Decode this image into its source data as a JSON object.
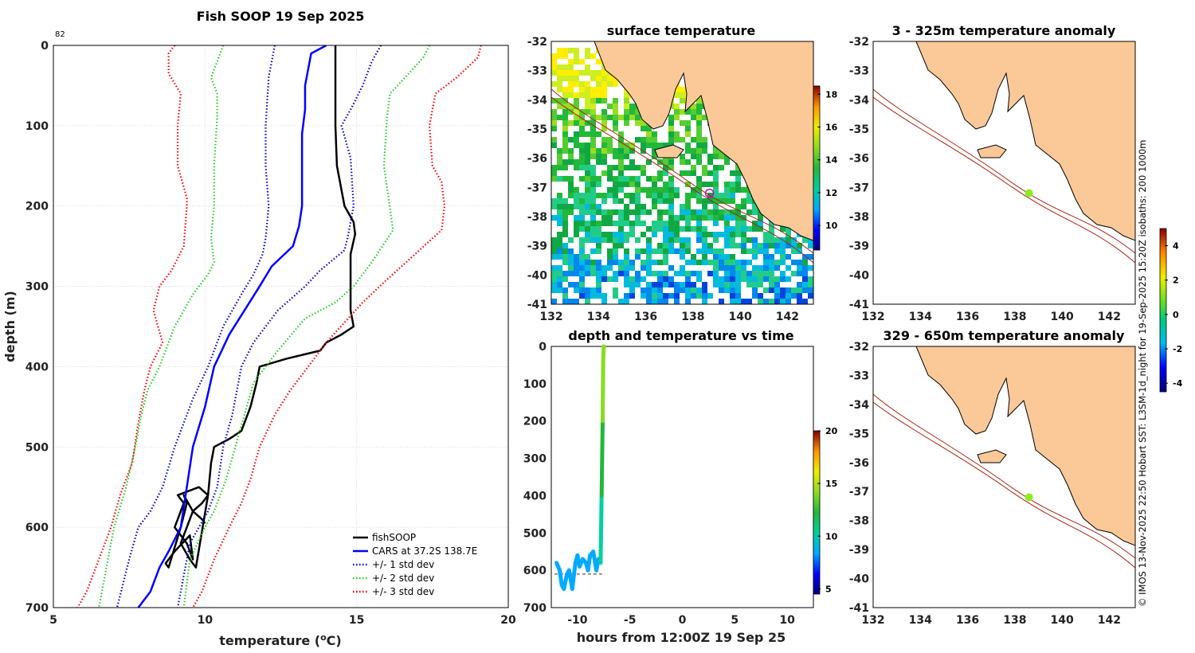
{
  "colors": {
    "fish": "#000000",
    "cars": "#0000ff",
    "std1": "#0000cc",
    "std2": "#22cc22",
    "std3": "#ff0000",
    "land": "#fbc898",
    "isobath": "#aa2211",
    "anomaly_marker": "#88ee22",
    "ssm_marker": "#cc00cc"
  },
  "copyright": "© IMOS 13-Nov-2025 22:50 Hobart SST: L3SM-1d_night for 19-Sep-2025 15:20Z isobaths: 200  1000m",
  "chart_data": [
    {
      "id": "profile",
      "type": "line",
      "title": "Fish SOOP 19 Sep 2025",
      "corner_label": "82",
      "xlabel": "temperature (°C)",
      "ylabel": "depth (m)",
      "xlim": [
        5,
        20
      ],
      "ylim": [
        0,
        700
      ],
      "xticks": [
        "5",
        "10",
        "15",
        "20"
      ],
      "yticks": [
        "0",
        "100",
        "200",
        "300",
        "400",
        "500",
        "600",
        "700"
      ],
      "series": [
        {
          "name": "fishSOOP",
          "style": "solid",
          "color_key": "fish",
          "x": [
            14.3,
            14.3,
            14.3,
            14.35,
            14.5,
            14.6,
            14.9,
            14.95,
            14.8,
            14.8,
            14.8,
            14.9,
            14.5,
            14.0,
            13.8,
            12.7,
            11.8,
            11.7,
            11.5,
            11.3,
            11.2,
            10.8,
            10.3,
            10.2,
            10.1,
            9.9,
            9.6,
            9.4,
            9.2,
            9.5,
            9.7,
            10.1,
            9.8,
            9.1,
            9.3,
            9.0,
            9.4,
            9.6,
            9.5,
            9.0,
            8.7,
            8.8,
            9.2,
            9.4,
            9.3,
            9.6,
            9.9,
            10.0
          ],
          "y": [
            0,
            40,
            100,
            150,
            180,
            200,
            220,
            235,
            260,
            300,
            330,
            350,
            360,
            370,
            380,
            390,
            400,
            420,
            450,
            470,
            480,
            490,
            500,
            520,
            560,
            570,
            580,
            600,
            620,
            640,
            650,
            560,
            550,
            560,
            570,
            600,
            620,
            640,
            610,
            630,
            645,
            650,
            600,
            570,
            560,
            580,
            590,
            595
          ]
        },
        {
          "name": "CARS at 37.2S 138.7E",
          "style": "solid",
          "color_key": "cars",
          "x": [
            14.0,
            13.5,
            13.3,
            13.3,
            13.2,
            13.2,
            13.2,
            13.1,
            12.9,
            12.2,
            11.8,
            10.8,
            10.3,
            10.0,
            9.6,
            9.4,
            9.2,
            8.8,
            8.5,
            8.2,
            7.8
          ],
          "y": [
            0,
            10,
            50,
            80,
            110,
            150,
            200,
            225,
            250,
            275,
            300,
            360,
            400,
            450,
            500,
            550,
            600,
            630,
            650,
            680,
            700
          ]
        },
        {
          "name": "+/- 1 std dev",
          "style": "dotted",
          "color_key": "std1",
          "x": [
            15.8,
            15.5,
            15.2,
            14.8,
            14.5,
            14.8,
            14.9,
            14.7,
            14.6,
            13.8,
            13.3,
            12.4,
            11.6,
            11.2,
            10.9,
            10.6,
            10.4,
            10.1,
            9.8,
            9.5,
            9.3,
            9.1
          ],
          "y": [
            0,
            20,
            50,
            80,
            100,
            140,
            200,
            240,
            255,
            280,
            300,
            330,
            370,
            400,
            460,
            500,
            550,
            580,
            600,
            620,
            660,
            700
          ]
        },
        {
          "name": "minus 1 std dev",
          "style": "dotted",
          "color_key": "std1",
          "legend": false,
          "x": [
            12.3,
            12.1,
            12.0,
            12.0,
            12.1,
            12.0,
            11.9,
            11.6,
            11.2,
            10.6,
            10.1,
            9.6,
            9.3,
            9.0,
            8.6,
            8.2,
            7.8,
            7.5,
            7.3,
            7.1
          ],
          "y": [
            0,
            40,
            100,
            150,
            200,
            240,
            260,
            285,
            310,
            350,
            400,
            440,
            470,
            500,
            550,
            580,
            600,
            640,
            670,
            700
          ]
        },
        {
          "name": "+/- 2 std dev",
          "style": "dotted",
          "color_key": "std2",
          "x": [
            17.4,
            17.2,
            16.6,
            16.1,
            16.0,
            15.9,
            16.2,
            15.5,
            14.9,
            14.3,
            13.3,
            12.4,
            11.6,
            11.3,
            11.0,
            10.7,
            10.3,
            10.0,
            9.5,
            9.4,
            9.3
          ],
          "y": [
            0,
            15,
            40,
            60,
            90,
            150,
            230,
            270,
            300,
            320,
            340,
            380,
            420,
            460,
            500,
            540,
            580,
            600,
            640,
            670,
            700
          ]
        },
        {
          "name": "minus 2 std dev",
          "style": "dotted",
          "color_key": "std2",
          "legend": false,
          "x": [
            10.6,
            10.4,
            10.2,
            10.4,
            10.4,
            10.3,
            10.3,
            10.2,
            10.3,
            10.1,
            9.6,
            9.0,
            8.5,
            8.1,
            7.9,
            7.7,
            7.4,
            7.0,
            6.8,
            6.6,
            6.5
          ],
          "y": [
            0,
            20,
            40,
            60,
            90,
            150,
            200,
            240,
            270,
            285,
            310,
            350,
            400,
            430,
            460,
            500,
            550,
            600,
            640,
            680,
            700
          ]
        },
        {
          "name": "+/- 3 std dev",
          "style": "dotted",
          "color_key": "std3",
          "x": [
            19.1,
            19.0,
            18.3,
            17.6,
            17.4,
            17.5,
            17.8,
            17.9,
            17.8,
            15.9,
            15.2,
            14.0,
            12.8,
            12.3,
            11.8,
            11.5,
            11.2,
            10.8,
            10.3,
            9.9,
            9.6
          ],
          "y": [
            0,
            15,
            40,
            60,
            100,
            150,
            170,
            200,
            230,
            295,
            320,
            370,
            430,
            460,
            500,
            540,
            570,
            600,
            640,
            680,
            700
          ]
        },
        {
          "name": "minus 3 std dev",
          "style": "dotted",
          "color_key": "std3",
          "legend": false,
          "x": [
            9.0,
            8.8,
            8.8,
            9.2,
            9.1,
            9.1,
            9.4,
            9.4,
            9.3,
            8.9,
            8.5,
            8.3,
            8.6,
            8.2,
            8.0,
            7.8,
            7.6,
            7.2,
            6.9,
            6.4,
            6.1,
            5.8
          ],
          "y": [
            0,
            10,
            35,
            60,
            100,
            150,
            190,
            200,
            250,
            280,
            300,
            330,
            370,
            400,
            430,
            470,
            520,
            560,
            600,
            650,
            680,
            700
          ]
        }
      ],
      "legend_position": "bottom-right"
    },
    {
      "id": "sst",
      "type": "heatmap",
      "title": "surface temperature",
      "xlim": [
        132,
        143.1
      ],
      "ylim": [
        -41,
        -32
      ],
      "xticks": [
        "132",
        "134",
        "136",
        "138",
        "140",
        "142"
      ],
      "yticks": [
        "-32",
        "-33",
        "-34",
        "-35",
        "-36",
        "-37",
        "-38",
        "-39",
        "-40",
        "-41"
      ],
      "colorbar": {
        "range": [
          8.5,
          18.5
        ],
        "ticks": [
          "18",
          "16",
          "14",
          "12",
          "10"
        ],
        "tick_values": [
          18,
          16,
          14,
          12,
          10
        ]
      },
      "marker": {
        "lon": 138.7,
        "lat": -37.2
      }
    },
    {
      "id": "timeseries",
      "type": "line",
      "title": "depth and temperature vs time",
      "xlabel": "hours from 12:00Z 19 Sep 25",
      "xlim": [
        -12.5,
        12.5
      ],
      "ylim": [
        0,
        700
      ],
      "xticks": [
        "-10",
        "-5",
        "0",
        "5",
        "10"
      ],
      "xtick_values": [
        -10,
        -5,
        0,
        5,
        10
      ],
      "yticks": [
        "0",
        "100",
        "200",
        "300",
        "400",
        "500",
        "600",
        "700"
      ],
      "colorbar": {
        "range": [
          4.5,
          20
        ],
        "ticks": [
          "20",
          "15",
          "10",
          "5"
        ],
        "tick_values": [
          20,
          15,
          10,
          5
        ]
      },
      "track": {
        "t": [
          -12.0,
          -11.7,
          -11.5,
          -11.3,
          -11.0,
          -10.8,
          -10.5,
          -10.2,
          -10.0,
          -9.8,
          -9.5,
          -9.2,
          -9.0,
          -8.8,
          -8.5,
          -8.2,
          -8.0,
          -7.8,
          -7.7,
          -7.6,
          -7.55,
          -7.5
        ],
        "depth": [
          580,
          600,
          640,
          650,
          610,
          600,
          650,
          580,
          560,
          590,
          570,
          580,
          600,
          560,
          550,
          600,
          570,
          580,
          400,
          200,
          40,
          0
        ],
        "temp": [
          9.0,
          8.8,
          8.9,
          9.0,
          9.2,
          9.4,
          9.0,
          9.6,
          9.8,
          9.4,
          9.6,
          9.5,
          9.3,
          9.8,
          9.9,
          9.5,
          9.8,
          9.7,
          12.5,
          14.5,
          14.3,
          14.3
        ]
      },
      "dashed_depth": 610
    },
    {
      "id": "anom_shallow",
      "type": "scatter",
      "title": "3 - 325m temperature anomaly",
      "xlim": [
        132,
        143.1
      ],
      "ylim": [
        -41,
        -32
      ],
      "xticks": [
        "132",
        "134",
        "136",
        "138",
        "140",
        "142"
      ],
      "yticks": [
        "-32",
        "-33",
        "-34",
        "-35",
        "-36",
        "-37",
        "-38",
        "-39",
        "-40",
        "-41"
      ],
      "points": [
        {
          "lon": 138.6,
          "lat": -37.2,
          "anomaly": 0.4
        }
      ]
    },
    {
      "id": "anom_deep",
      "type": "scatter",
      "title": "329 - 650m temperature anomaly",
      "xlim": [
        132,
        143.1
      ],
      "ylim": [
        -41,
        -32
      ],
      "xticks": [
        "132",
        "134",
        "136",
        "138",
        "140",
        "142"
      ],
      "yticks": [
        "-32",
        "-33",
        "-34",
        "-35",
        "-36",
        "-37",
        "-38",
        "-39",
        "-40",
        "-41"
      ],
      "points": [
        {
          "lon": 138.6,
          "lat": -37.2,
          "anomaly": 0.4
        }
      ],
      "colorbar": {
        "range": [
          -4.5,
          5
        ],
        "ticks": [
          "4",
          "2",
          "0",
          "-2",
          "-4"
        ],
        "tick_values": [
          4,
          2,
          0,
          -2,
          -4
        ]
      }
    }
  ]
}
